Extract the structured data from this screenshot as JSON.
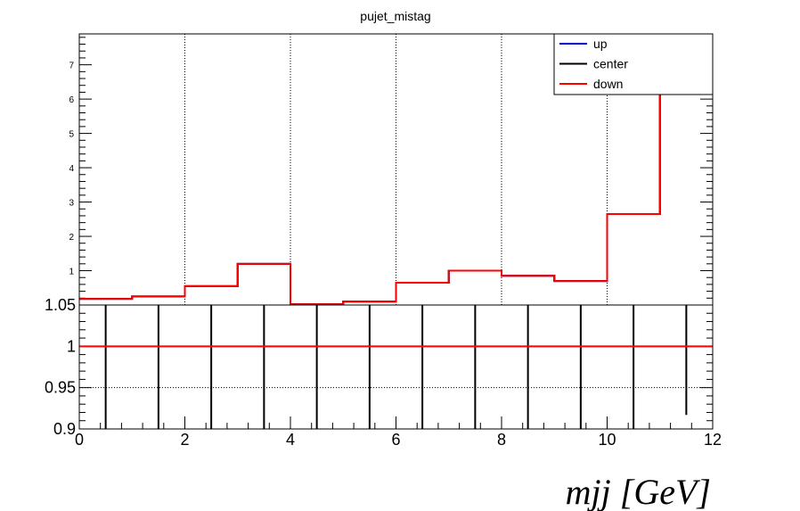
{
  "chart_data": [
    {
      "type": "line",
      "panel": "main",
      "title": "pujet_mistag",
      "step": true,
      "x_edges": [
        0,
        1,
        2,
        3,
        4,
        5,
        6,
        7,
        8,
        9,
        10,
        11,
        12
      ],
      "series": [
        {
          "name": "up",
          "color": "#0000cc",
          "values": [
            0.18,
            0.25,
            0.55,
            1.2,
            0.02,
            0.1,
            0.65,
            1.0,
            0.85,
            0.7,
            2.65,
            7.85
          ]
        },
        {
          "name": "center",
          "color": "#000000",
          "values": [
            0.18,
            0.25,
            0.55,
            1.2,
            0.02,
            0.1,
            0.65,
            1.0,
            0.85,
            0.7,
            2.65,
            7.85
          ]
        },
        {
          "name": "down",
          "color": "#ff0000",
          "values": [
            0.18,
            0.25,
            0.55,
            1.2,
            0.02,
            0.1,
            0.65,
            1.0,
            0.85,
            0.7,
            2.65,
            7.85
          ]
        }
      ],
      "xlim": [
        0,
        12
      ],
      "ylim": [
        0,
        7.9
      ],
      "yticks": [
        1,
        2,
        3,
        4,
        5,
        6,
        7
      ],
      "grid_x": [
        2,
        4,
        6,
        8,
        10
      ],
      "legend_position": "top-right"
    },
    {
      "type": "line",
      "panel": "ratio",
      "xlabel": "mjj [GeV]",
      "xlim": [
        0,
        12
      ],
      "ylim": [
        0.9,
        1.05
      ],
      "yticks": [
        "0.9",
        "0.95",
        "1",
        "1.05"
      ],
      "xticks": [
        0,
        2,
        4,
        6,
        8,
        10,
        12
      ],
      "ratio_line": {
        "value": 1,
        "color": "#ff0000"
      },
      "error_bars": {
        "x": [
          0.5,
          1.5,
          2.5,
          3.5,
          4.5,
          5.5,
          6.5,
          7.5,
          8.5,
          9.5,
          10.5,
          11.5
        ],
        "low": [
          0.9,
          0.9,
          0.9,
          0.9,
          0.9,
          0.9,
          0.9,
          0.9,
          0.9,
          0.9,
          0.9,
          0.917
        ],
        "high": [
          1.05,
          1.05,
          1.05,
          1.05,
          1.05,
          1.05,
          1.05,
          1.05,
          1.05,
          1.05,
          1.05,
          1.05
        ]
      },
      "grid_y": [
        0.95
      ]
    }
  ]
}
